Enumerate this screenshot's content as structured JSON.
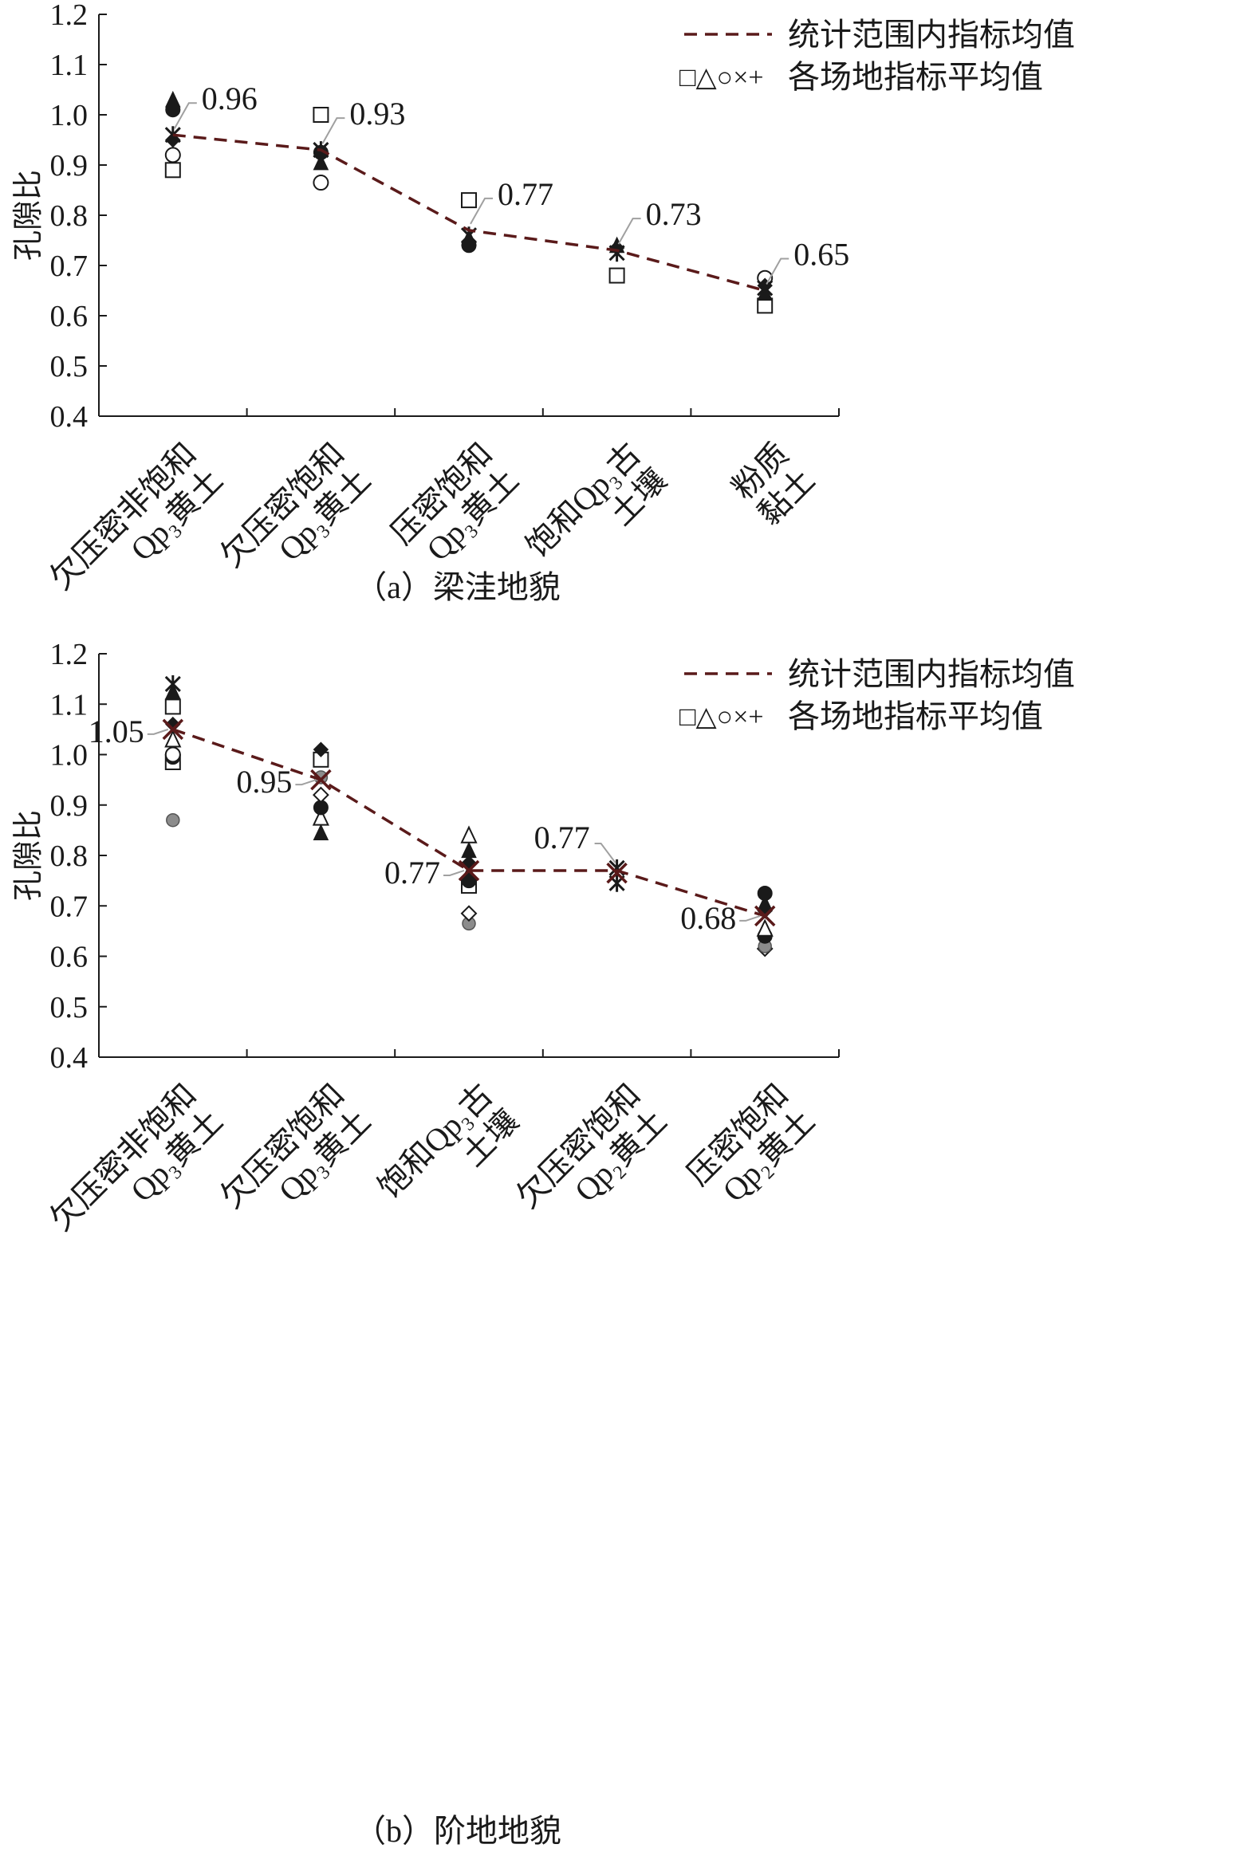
{
  "legend": {
    "line_label": "统计范围内指标均值",
    "marker_label": "各场地指标平均值",
    "marker_glyphs": "□△○×+"
  },
  "colors": {
    "mean_line": "#5a1a1a",
    "marker_stroke": "#1a1a1a",
    "marker_gray": "#8c8c8c",
    "leader_line": "#a0a0a0"
  },
  "chart_data": [
    {
      "type": "scatter",
      "caption": "（a）梁洼地貌",
      "ylabel": "孔隙比",
      "ylim": [
        0.4,
        1.2
      ],
      "yticks": [
        "0.4",
        "0.5",
        "0.6",
        "0.7",
        "0.8",
        "0.9",
        "1.0",
        "1.1",
        "1.2"
      ],
      "grid": false,
      "legend_position": "top-right",
      "categories": [
        [
          "欠压密非饱和",
          "Qp₃黄土"
        ],
        [
          "欠压密饱和",
          "Qp₃黄土"
        ],
        [
          "压密饱和",
          "Qp₃黄土"
        ],
        [
          "饱和Qp₃古",
          "土壤"
        ],
        [
          "粉质",
          "黏土"
        ]
      ],
      "mean_line": [
        0.96,
        0.93,
        0.77,
        0.73,
        0.65
      ],
      "mean_labels": [
        {
          "text": "0.96",
          "side": "right"
        },
        {
          "text": "0.93",
          "side": "right"
        },
        {
          "text": "0.77",
          "side": "right"
        },
        {
          "text": "0.73",
          "side": "right"
        },
        {
          "text": "0.65",
          "side": "right"
        }
      ],
      "points": [
        [
          {
            "m": "square",
            "y": 0.89
          },
          {
            "m": "circle",
            "y": 0.92
          },
          {
            "m": "diamond_filled",
            "y": 0.95
          },
          {
            "m": "circle_filled",
            "y": 1.01
          },
          {
            "m": "triangle_filled",
            "y": 1.03
          },
          {
            "m": "star",
            "y": 0.96
          }
        ],
        [
          {
            "m": "square",
            "y": 1.0
          },
          {
            "m": "circle",
            "y": 0.865
          },
          {
            "m": "triangle_filled",
            "y": 0.905
          },
          {
            "m": "circle_filled",
            "y": 0.925
          },
          {
            "m": "star",
            "y": 0.93
          }
        ],
        [
          {
            "m": "square",
            "y": 0.83
          },
          {
            "m": "circle_filled",
            "y": 0.74
          },
          {
            "m": "diamond_filled",
            "y": 0.745
          },
          {
            "m": "triangle_filled",
            "y": 0.755
          },
          {
            "m": "star",
            "y": 0.76
          }
        ],
        [
          {
            "m": "square",
            "y": 0.68
          },
          {
            "m": "triangle_filled",
            "y": 0.74
          },
          {
            "m": "diamond_filled",
            "y": 0.735
          },
          {
            "m": "star",
            "y": 0.725
          }
        ],
        [
          {
            "m": "square",
            "y": 0.62
          },
          {
            "m": "circle",
            "y": 0.675
          },
          {
            "m": "triangle_filled",
            "y": 0.645
          },
          {
            "m": "diamond_filled",
            "y": 0.66
          },
          {
            "m": "star",
            "y": 0.655
          }
        ]
      ]
    },
    {
      "type": "scatter",
      "caption": "（b）阶地地貌",
      "ylabel": "孔隙比",
      "ylim": [
        0.4,
        1.2
      ],
      "yticks": [
        "0.4",
        "0.5",
        "0.6",
        "0.7",
        "0.8",
        "0.9",
        "1.0",
        "1.1",
        "1.2"
      ],
      "grid": false,
      "legend_position": "top-right",
      "categories": [
        [
          "欠压密非饱和",
          "Qp₃黄土"
        ],
        [
          "欠压密饱和",
          "Qp₃黄土"
        ],
        [
          "饱和Qp₃古",
          "土壤"
        ],
        [
          "欠压密饱和",
          "Qp₂黄土"
        ],
        [
          "压密饱和",
          "Qp₂黄土"
        ]
      ],
      "mean_line": [
        1.05,
        0.95,
        0.77,
        0.77,
        0.68
      ],
      "mean_labels": [
        {
          "text": "1.05",
          "side": "left"
        },
        {
          "text": "0.95",
          "side": "left"
        },
        {
          "text": "0.77",
          "side": "left"
        },
        {
          "text": "0.77",
          "side": "upper-left"
        },
        {
          "text": "0.68",
          "side": "left"
        }
      ],
      "points": [
        [
          {
            "m": "circle_gray",
            "y": 0.87
          },
          {
            "m": "square",
            "y": 0.985
          },
          {
            "m": "circle_filled",
            "y": 0.995
          },
          {
            "m": "circle",
            "y": 1.0
          },
          {
            "m": "triangle",
            "y": 1.03
          },
          {
            "m": "diamond_filled",
            "y": 1.06
          },
          {
            "m": "square",
            "y": 1.095
          },
          {
            "m": "triangle_filled",
            "y": 1.125
          },
          {
            "m": "star",
            "y": 1.14
          },
          {
            "m": "star_red",
            "y": 1.05
          }
        ],
        [
          {
            "m": "triangle_filled",
            "y": 0.845
          },
          {
            "m": "triangle",
            "y": 0.875
          },
          {
            "m": "circle_filled",
            "y": 0.895
          },
          {
            "m": "diamond",
            "y": 0.92
          },
          {
            "m": "circle_gray",
            "y": 0.955
          },
          {
            "m": "square",
            "y": 0.99
          },
          {
            "m": "diamond_filled",
            "y": 1.01
          },
          {
            "m": "star_red",
            "y": 0.95
          }
        ],
        [
          {
            "m": "circle_gray",
            "y": 0.665
          },
          {
            "m": "diamond",
            "y": 0.685
          },
          {
            "m": "square",
            "y": 0.74
          },
          {
            "m": "circle_filled",
            "y": 0.75
          },
          {
            "m": "triangle_filled",
            "y": 0.765
          },
          {
            "m": "diamond_filled",
            "y": 0.785
          },
          {
            "m": "triangle_filled",
            "y": 0.81
          },
          {
            "m": "triangle",
            "y": 0.84
          },
          {
            "m": "star_red",
            "y": 0.77
          }
        ],
        [
          {
            "m": "star",
            "y": 0.745
          },
          {
            "m": "star",
            "y": 0.775
          },
          {
            "m": "star_red",
            "y": 0.765
          }
        ],
        [
          {
            "m": "diamond",
            "y": 0.615
          },
          {
            "m": "circle_gray",
            "y": 0.62
          },
          {
            "m": "circle_filled",
            "y": 0.64
          },
          {
            "m": "triangle",
            "y": 0.655
          },
          {
            "m": "diamond_filled",
            "y": 0.69
          },
          {
            "m": "triangle_filled",
            "y": 0.705
          },
          {
            "m": "circle_filled",
            "y": 0.725
          },
          {
            "m": "star_red",
            "y": 0.68
          }
        ]
      ]
    }
  ]
}
